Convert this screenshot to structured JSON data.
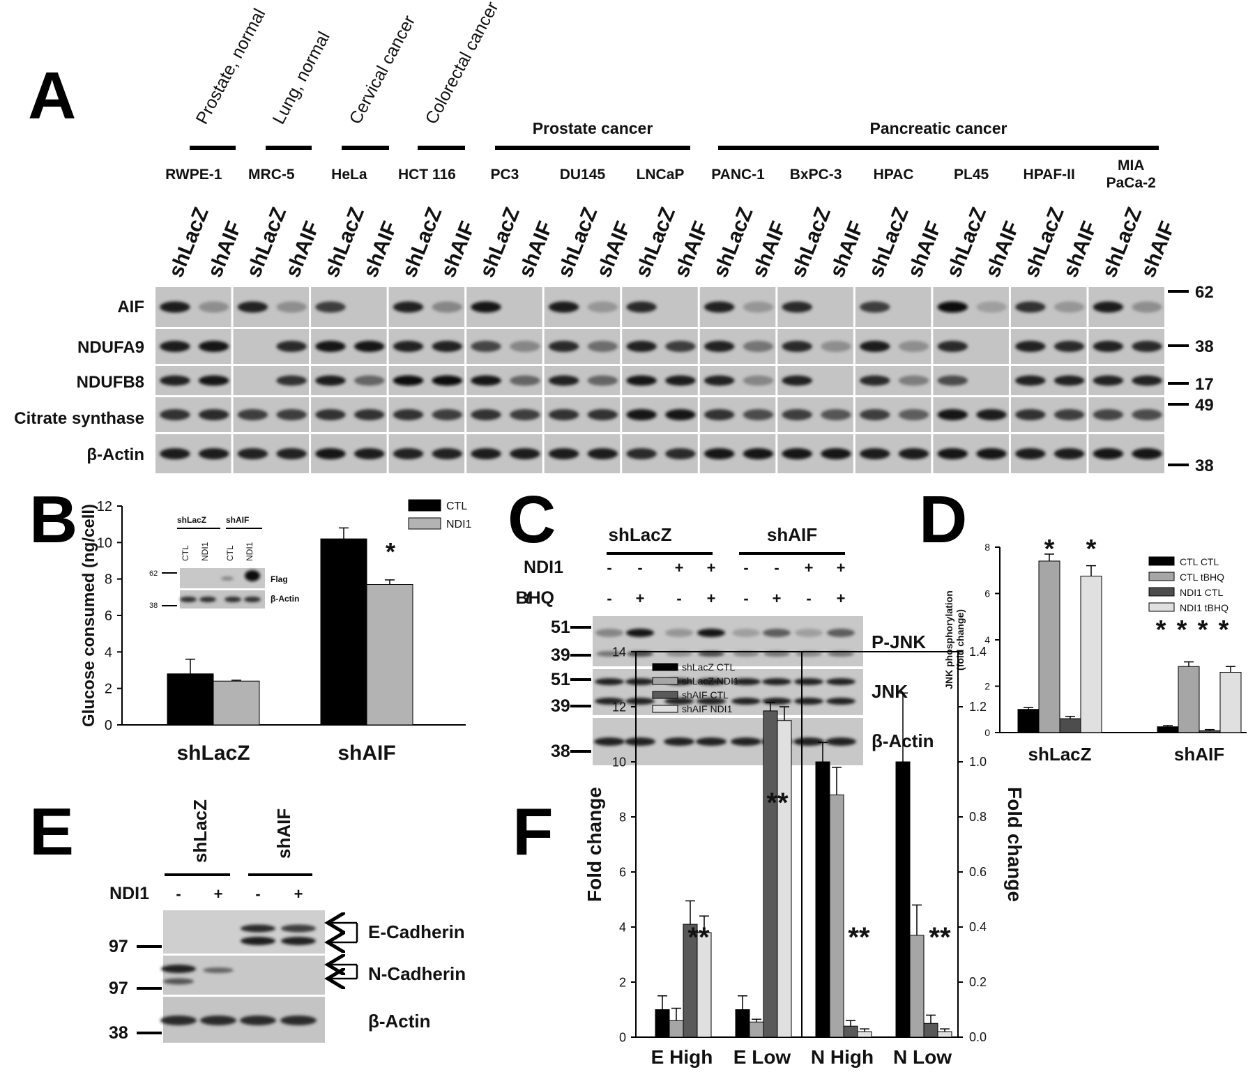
{
  "panel_letters": [
    "A",
    "B",
    "C",
    "D",
    "E",
    "F"
  ],
  "panel_a": {
    "tissue_labels": [
      "Prostate, normal",
      "Lung, normal",
      "Cervical cancer",
      "Colorectal cancer"
    ],
    "group_labels": [
      "Prostate cancer",
      "Pancreatic cancer"
    ],
    "cell_lines": [
      "RWPE-1",
      "MRC-5",
      "HeLa",
      "HCT 116",
      "PC3",
      "DU145",
      "LNCaP",
      "PANC-1",
      "BxPC-3",
      "HPAC",
      "PL45",
      "HPAF-II",
      "MIA PaCa-2"
    ],
    "lanes": [
      "shLacZ",
      "shAIF"
    ],
    "blots": [
      "AIF",
      "NDUFA9",
      "NDUFB8",
      "Citrate synthase",
      "β-Actin"
    ],
    "mw_markers": [
      "62",
      "38",
      "17",
      "49",
      "38"
    ]
  },
  "panel_b": {
    "inset": {
      "group_labels": [
        "shLacZ",
        "shAIF"
      ],
      "lane_labels": [
        "CTL",
        "NDI1",
        "CTL",
        "NDI1"
      ],
      "blot_labels": [
        "Flag",
        "β-Actin"
      ],
      "mw_markers": [
        "62",
        "38"
      ]
    },
    "significance": "*"
  },
  "panel_c": {
    "group_labels": [
      "shLacZ",
      "shAIF"
    ],
    "row_labels": [
      "NDI1",
      "tBHQ"
    ],
    "ndi1_signs": [
      "-",
      "-",
      "+",
      "+",
      "-",
      "-",
      "+",
      "+"
    ],
    "tbhq_signs": [
      "-",
      "+",
      "-",
      "+",
      "-",
      "+",
      "-",
      "+"
    ],
    "blots": [
      "P-JNK",
      "JNK",
      "β-Actin"
    ],
    "mw_markers": [
      "51",
      "39",
      "51",
      "39",
      "38"
    ]
  },
  "panel_e": {
    "group_labels": [
      "shLacZ",
      "shAIF"
    ],
    "row_label": "NDI1",
    "signs": [
      "-",
      "+",
      "-",
      "+"
    ],
    "blots": [
      "E-Cadherin",
      "N-Cadherin",
      "β-Actin"
    ],
    "mw_markers": [
      "97",
      "97",
      "38"
    ]
  },
  "chart_data": [
    {
      "panel": "B",
      "type": "bar",
      "categories": [
        "shLacZ",
        "shAIF"
      ],
      "series": [
        {
          "name": "CTL",
          "values": [
            2.8,
            10.2
          ],
          "errors": [
            0.8,
            0.6
          ],
          "color": "#000000"
        },
        {
          "name": "NDI1",
          "values": [
            2.4,
            7.7
          ],
          "errors": [
            0.05,
            0.25
          ],
          "color": "#b3b3b3"
        }
      ],
      "ylabel": "Glucose consumed (ng/cell)",
      "ylim": [
        0,
        12
      ],
      "yticks": [
        "0",
        "2",
        "4",
        "6",
        "8",
        "10",
        "12"
      ],
      "annotations": [
        "*"
      ],
      "legend": "top-right"
    },
    {
      "panel": "D",
      "type": "bar",
      "categories": [
        "shLacZ",
        "shAIF"
      ],
      "series": [
        {
          "name": "CTL CTL",
          "values": [
            1.0,
            0.25
          ],
          "errors": [
            0.08,
            0.05
          ],
          "color": "#000000"
        },
        {
          "name": "CTL tBHQ",
          "values": [
            7.4,
            2.85
          ],
          "errors": [
            0.3,
            0.2
          ],
          "color": "#a6a6a6"
        },
        {
          "name": "NDI1 CTL",
          "values": [
            0.6,
            0.08
          ],
          "errors": [
            0.1,
            0.05
          ],
          "color": "#4d4d4d"
        },
        {
          "name": "NDI1 tBHQ",
          "values": [
            6.75,
            2.6
          ],
          "errors": [
            0.45,
            0.25
          ],
          "color": "#e0e0e0"
        }
      ],
      "ylabel": "JNK phosphorylation (fold change)",
      "ylim": [
        0,
        8
      ],
      "yticks": [
        "0",
        "2",
        "4",
        "6",
        "8"
      ],
      "annotations": [
        "*",
        "*",
        "*",
        "*",
        "*",
        "*"
      ],
      "legend": "top-right"
    },
    {
      "panel": "F",
      "type": "bar",
      "categories": [
        "E High",
        "E Low",
        "N High",
        "N Low"
      ],
      "series": [
        {
          "name": "shLacZ CTL",
          "values": [
            1.0,
            1.0,
            1.0,
            1.0
          ],
          "errors": [
            0.5,
            0.5,
            0.07,
            0.25
          ],
          "color": "#000000"
        },
        {
          "name": "shLacZ NDI1",
          "values": [
            0.6,
            0.55,
            0.88,
            0.37
          ],
          "errors": [
            0.45,
            0.1,
            0.1,
            0.11
          ],
          "color": "#a6a6a6"
        },
        {
          "name": "shAIF CTL",
          "values": [
            4.1,
            11.85,
            0.04,
            0.05
          ],
          "errors": [
            0.85,
            0.3,
            0.02,
            0.03
          ],
          "color": "#595959"
        },
        {
          "name": "shAIF NDI1",
          "values": [
            3.8,
            11.5,
            0.02,
            0.02
          ],
          "errors": [
            0.6,
            0.5,
            0.01,
            0.01
          ],
          "color": "#e0e0e0"
        }
      ],
      "ylabel": "Fold change",
      "ylabel_right": "Fold change",
      "ylim": [
        0,
        14
      ],
      "ylim_right": [
        0,
        1.4
      ],
      "yticks": [
        "0",
        "2",
        "4",
        "6",
        "8",
        "10",
        "12",
        "14"
      ],
      "yticks_right": [
        "0.0",
        "0.2",
        "0.4",
        "0.6",
        "0.8",
        "1.0",
        "1.2",
        "1.4"
      ],
      "annotations": [
        "**",
        "**",
        "**",
        "**"
      ],
      "legend": "top-left"
    }
  ]
}
